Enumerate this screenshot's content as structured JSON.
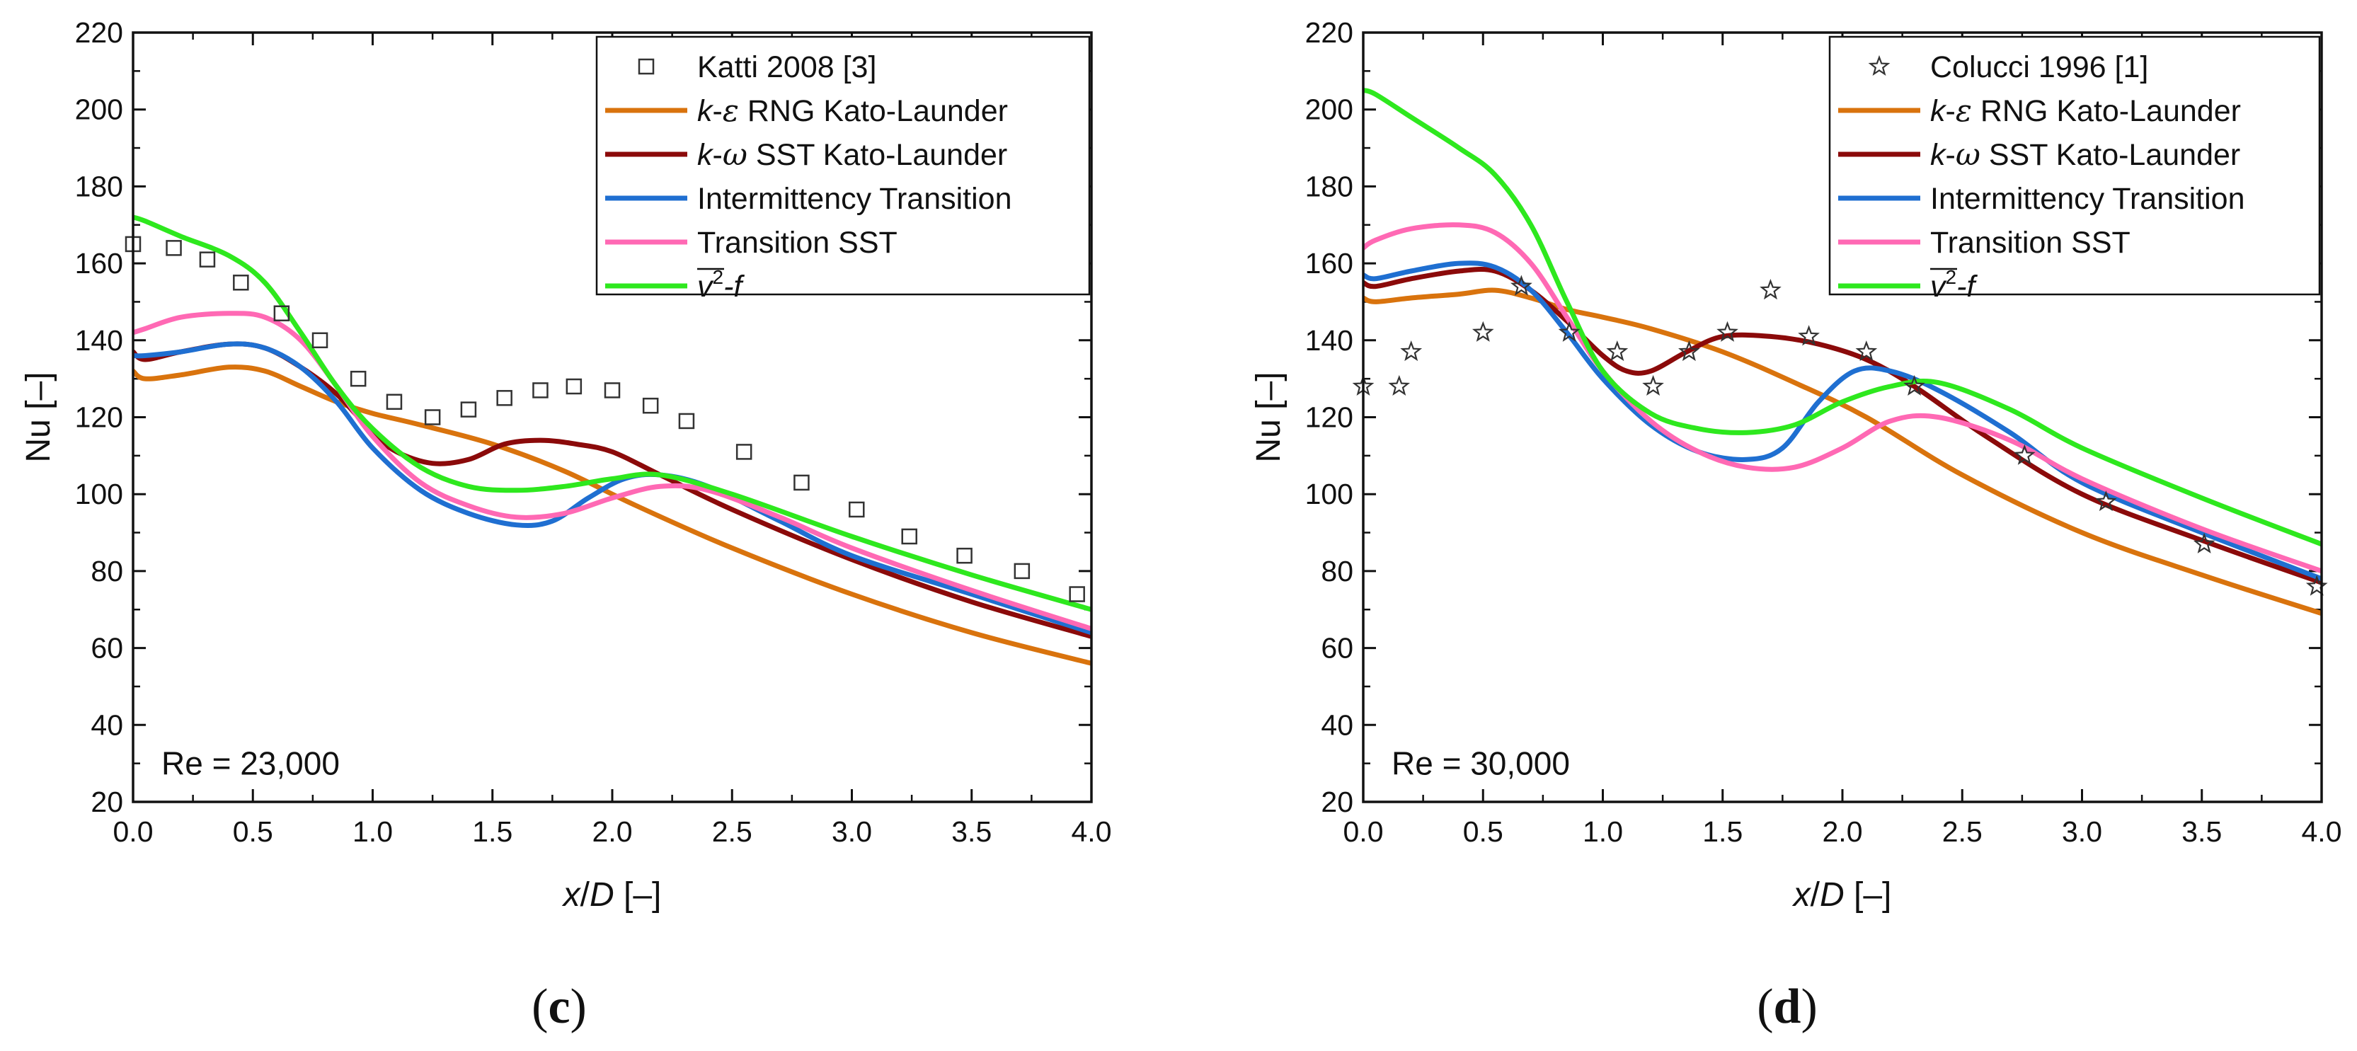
{
  "chart_data": [
    {
      "type": "line",
      "panel_label_open": "(",
      "panel_label_letter": "c",
      "panel_label_close": ")",
      "annotation": "Re = 23,000",
      "xlabel": {
        "v1": "x",
        "v2": "/",
        "v3": "D",
        "v4": " [–]"
      },
      "ylabel": "Nu [–]",
      "xlim": [
        0,
        4
      ],
      "ylim": [
        20,
        220
      ],
      "xticks": [
        0.0,
        0.5,
        1.0,
        1.5,
        2.0,
        2.5,
        3.0,
        3.5,
        4.0
      ],
      "xtick_labels": [
        "0.0",
        "0.5",
        "1.0",
        "1.5",
        "2.0",
        "2.5",
        "3.0",
        "3.5",
        "4.0"
      ],
      "yticks": [
        20,
        40,
        60,
        80,
        100,
        120,
        140,
        160,
        180,
        200,
        220
      ],
      "ytick_labels": [
        "20",
        "40",
        "60",
        "80",
        "100",
        "120",
        "140",
        "160",
        "180",
        "200",
        "220"
      ],
      "legend_position": "top-right",
      "experiment": {
        "name": "Katti 2008 [3]",
        "marker": "square",
        "x": [
          0.0,
          0.17,
          0.31,
          0.45,
          0.62,
          0.78,
          0.94,
          1.09,
          1.25,
          1.4,
          1.55,
          1.7,
          1.84,
          2.0,
          2.16,
          2.31,
          2.55,
          2.79,
          3.02,
          3.24,
          3.47,
          3.71,
          3.94
        ],
        "y": [
          165,
          164,
          161,
          155,
          147,
          140,
          130,
          124,
          120,
          122,
          125,
          127,
          128,
          127,
          123,
          119,
          111,
          103,
          96,
          89,
          84,
          80,
          74
        ]
      },
      "series": [
        {
          "name_parts": {
            "v1": "k",
            "v2": "-",
            "v3": "ε",
            "v4": " RNG Kato-Launder"
          },
          "color": "#d9730d",
          "x": [
            0,
            0.05,
            0.2,
            0.4,
            0.55,
            0.7,
            0.85,
            1.0,
            1.2,
            1.5,
            1.8,
            2.1,
            2.5,
            3.0,
            3.5,
            4.0
          ],
          "y": [
            132,
            130,
            131,
            133,
            132,
            128,
            124,
            121,
            118,
            113,
            106,
            97,
            86,
            74,
            64,
            56
          ]
        },
        {
          "name_parts": {
            "v1": "k",
            "v2": "-",
            "v3": "ω",
            "v4": " SST Kato-Launder"
          },
          "color": "#8b0a0a",
          "x": [
            0,
            0.05,
            0.2,
            0.4,
            0.55,
            0.7,
            0.85,
            1.0,
            1.1,
            1.25,
            1.4,
            1.55,
            1.7,
            1.85,
            2.0,
            2.2,
            2.5,
            3.0,
            3.5,
            4.0
          ],
          "y": [
            137,
            135,
            137,
            139,
            138,
            133,
            126,
            116,
            111,
            108,
            109,
            113,
            114,
            113,
            111,
            105,
            96,
            83,
            72,
            63
          ]
        },
        {
          "name_parts": {
            "v1": "Intermittency Transition",
            "v2": "",
            "v3": "",
            "v4": ""
          },
          "color": "#1f6fd1",
          "x": [
            0,
            0.05,
            0.2,
            0.4,
            0.55,
            0.7,
            0.85,
            1.0,
            1.2,
            1.4,
            1.6,
            1.75,
            1.9,
            2.05,
            2.2,
            2.4,
            2.7,
            3.0,
            3.5,
            4.0
          ],
          "y": [
            136,
            136,
            137,
            139,
            138,
            133,
            124,
            112,
            101,
            95,
            92,
            93,
            99,
            104,
            105,
            102,
            93,
            84,
            74,
            64
          ]
        },
        {
          "name_parts": {
            "v1": "Transition SST",
            "v2": "",
            "v3": "",
            "v4": ""
          },
          "color": "#ff69b4",
          "x": [
            0,
            0.05,
            0.2,
            0.4,
            0.55,
            0.7,
            0.85,
            1.0,
            1.2,
            1.4,
            1.6,
            1.8,
            2.0,
            2.2,
            2.4,
            2.7,
            3.0,
            3.5,
            4.0
          ],
          "y": [
            142,
            143,
            146,
            147,
            146,
            140,
            128,
            115,
            103,
            97,
            94,
            95,
            99,
            102,
            101,
            94,
            86,
            75,
            65
          ]
        },
        {
          "name_parts": {
            "v1": "v",
            "v2": "2",
            "v3": "",
            "v4": "-f"
          },
          "is_v2f": true,
          "color": "#2ee81e",
          "x": [
            0,
            0.05,
            0.2,
            0.4,
            0.55,
            0.7,
            0.85,
            1.0,
            1.2,
            1.4,
            1.6,
            1.8,
            2.0,
            2.2,
            2.5,
            3.0,
            3.5,
            4.0
          ],
          "y": [
            172,
            171,
            167,
            162,
            155,
            142,
            128,
            117,
            107,
            102,
            101,
            102,
            104,
            105,
            100,
            89,
            79,
            70
          ]
        }
      ]
    },
    {
      "type": "line",
      "panel_label_open": "(",
      "panel_label_letter": "d",
      "panel_label_close": ")",
      "annotation": "Re = 30,000",
      "xlabel": {
        "v1": "x",
        "v2": "/",
        "v3": "D",
        "v4": " [–]"
      },
      "ylabel": "Nu [–]",
      "xlim": [
        0,
        4
      ],
      "ylim": [
        20,
        220
      ],
      "xticks": [
        0.0,
        0.5,
        1.0,
        1.5,
        2.0,
        2.5,
        3.0,
        3.5,
        4.0
      ],
      "xtick_labels": [
        "0.0",
        "0.5",
        "1.0",
        "1.5",
        "2.0",
        "2.5",
        "3.0",
        "3.5",
        "4.0"
      ],
      "yticks": [
        20,
        40,
        60,
        80,
        100,
        120,
        140,
        160,
        180,
        200,
        220
      ],
      "ytick_labels": [
        "20",
        "40",
        "60",
        "80",
        "100",
        "120",
        "140",
        "160",
        "180",
        "200",
        "220"
      ],
      "legend_position": "top-right",
      "experiment": {
        "name": "Colucci 1996 [1]",
        "marker": "star",
        "x": [
          0.0,
          0.15,
          0.2,
          0.5,
          0.66,
          0.86,
          1.06,
          1.21,
          1.36,
          1.52,
          1.7,
          1.86,
          2.1,
          2.3,
          2.76,
          3.1,
          3.51,
          3.98
        ],
        "y": [
          128,
          128,
          137,
          142,
          154,
          142,
          137,
          128,
          137,
          142,
          153,
          141,
          137,
          128,
          110,
          98,
          87,
          76
        ]
      },
      "series": [
        {
          "name_parts": {
            "v1": "k",
            "v2": "-",
            "v3": "ε",
            "v4": " RNG Kato-Launder"
          },
          "color": "#d9730d",
          "x": [
            0,
            0.05,
            0.2,
            0.4,
            0.55,
            0.7,
            0.85,
            1.0,
            1.2,
            1.5,
            1.8,
            2.1,
            2.5,
            3.0,
            3.5,
            4.0
          ],
          "y": [
            151,
            150,
            151,
            152,
            153,
            151,
            148,
            146,
            143,
            137,
            129,
            120,
            105,
            90,
            79,
            69
          ]
        },
        {
          "name_parts": {
            "v1": "k",
            "v2": "-",
            "v3": "ω",
            "v4": " SST Kato-Launder"
          },
          "color": "#8b0a0a",
          "x": [
            0,
            0.05,
            0.2,
            0.4,
            0.55,
            0.7,
            0.85,
            1.0,
            1.1,
            1.2,
            1.35,
            1.5,
            1.7,
            1.9,
            2.1,
            2.3,
            2.6,
            3.0,
            3.5,
            4.0
          ],
          "y": [
            155,
            154,
            156,
            158,
            158,
            153,
            145,
            136,
            132,
            132,
            137,
            141,
            141,
            139,
            135,
            128,
            115,
            100,
            88,
            77
          ]
        },
        {
          "name_parts": {
            "v1": "Intermittency Transition",
            "v2": "",
            "v3": "",
            "v4": ""
          },
          "color": "#1f6fd1",
          "x": [
            0,
            0.05,
            0.2,
            0.4,
            0.55,
            0.7,
            0.85,
            1.0,
            1.2,
            1.4,
            1.6,
            1.75,
            1.9,
            2.05,
            2.2,
            2.4,
            2.7,
            3.0,
            3.5,
            4.0
          ],
          "y": [
            157,
            156,
            158,
            160,
            159,
            153,
            142,
            130,
            118,
            111,
            109,
            112,
            124,
            132,
            132,
            127,
            116,
            103,
            90,
            78
          ]
        },
        {
          "name_parts": {
            "v1": "Transition SST",
            "v2": "",
            "v3": "",
            "v4": ""
          },
          "color": "#ff69b4",
          "x": [
            0,
            0.05,
            0.2,
            0.4,
            0.55,
            0.7,
            0.85,
            1.0,
            1.2,
            1.4,
            1.6,
            1.8,
            2.0,
            2.2,
            2.4,
            2.7,
            3.0,
            3.5,
            4.0
          ],
          "y": [
            164,
            166,
            169,
            170,
            168,
            160,
            146,
            132,
            119,
            111,
            107,
            107,
            112,
            119,
            120,
            114,
            104,
            91,
            80
          ]
        },
        {
          "name_parts": {
            "v1": "v",
            "v2": "2",
            "v3": "",
            "v4": "-f"
          },
          "is_v2f": true,
          "color": "#2ee81e",
          "x": [
            0,
            0.05,
            0.2,
            0.4,
            0.55,
            0.7,
            0.85,
            1.0,
            1.2,
            1.4,
            1.6,
            1.8,
            2.0,
            2.2,
            2.4,
            2.7,
            3.0,
            3.5,
            4.0
          ],
          "y": [
            205,
            204,
            198,
            190,
            183,
            170,
            150,
            132,
            121,
            117,
            116,
            118,
            124,
            128,
            129,
            122,
            112,
            99,
            87
          ]
        }
      ]
    }
  ]
}
